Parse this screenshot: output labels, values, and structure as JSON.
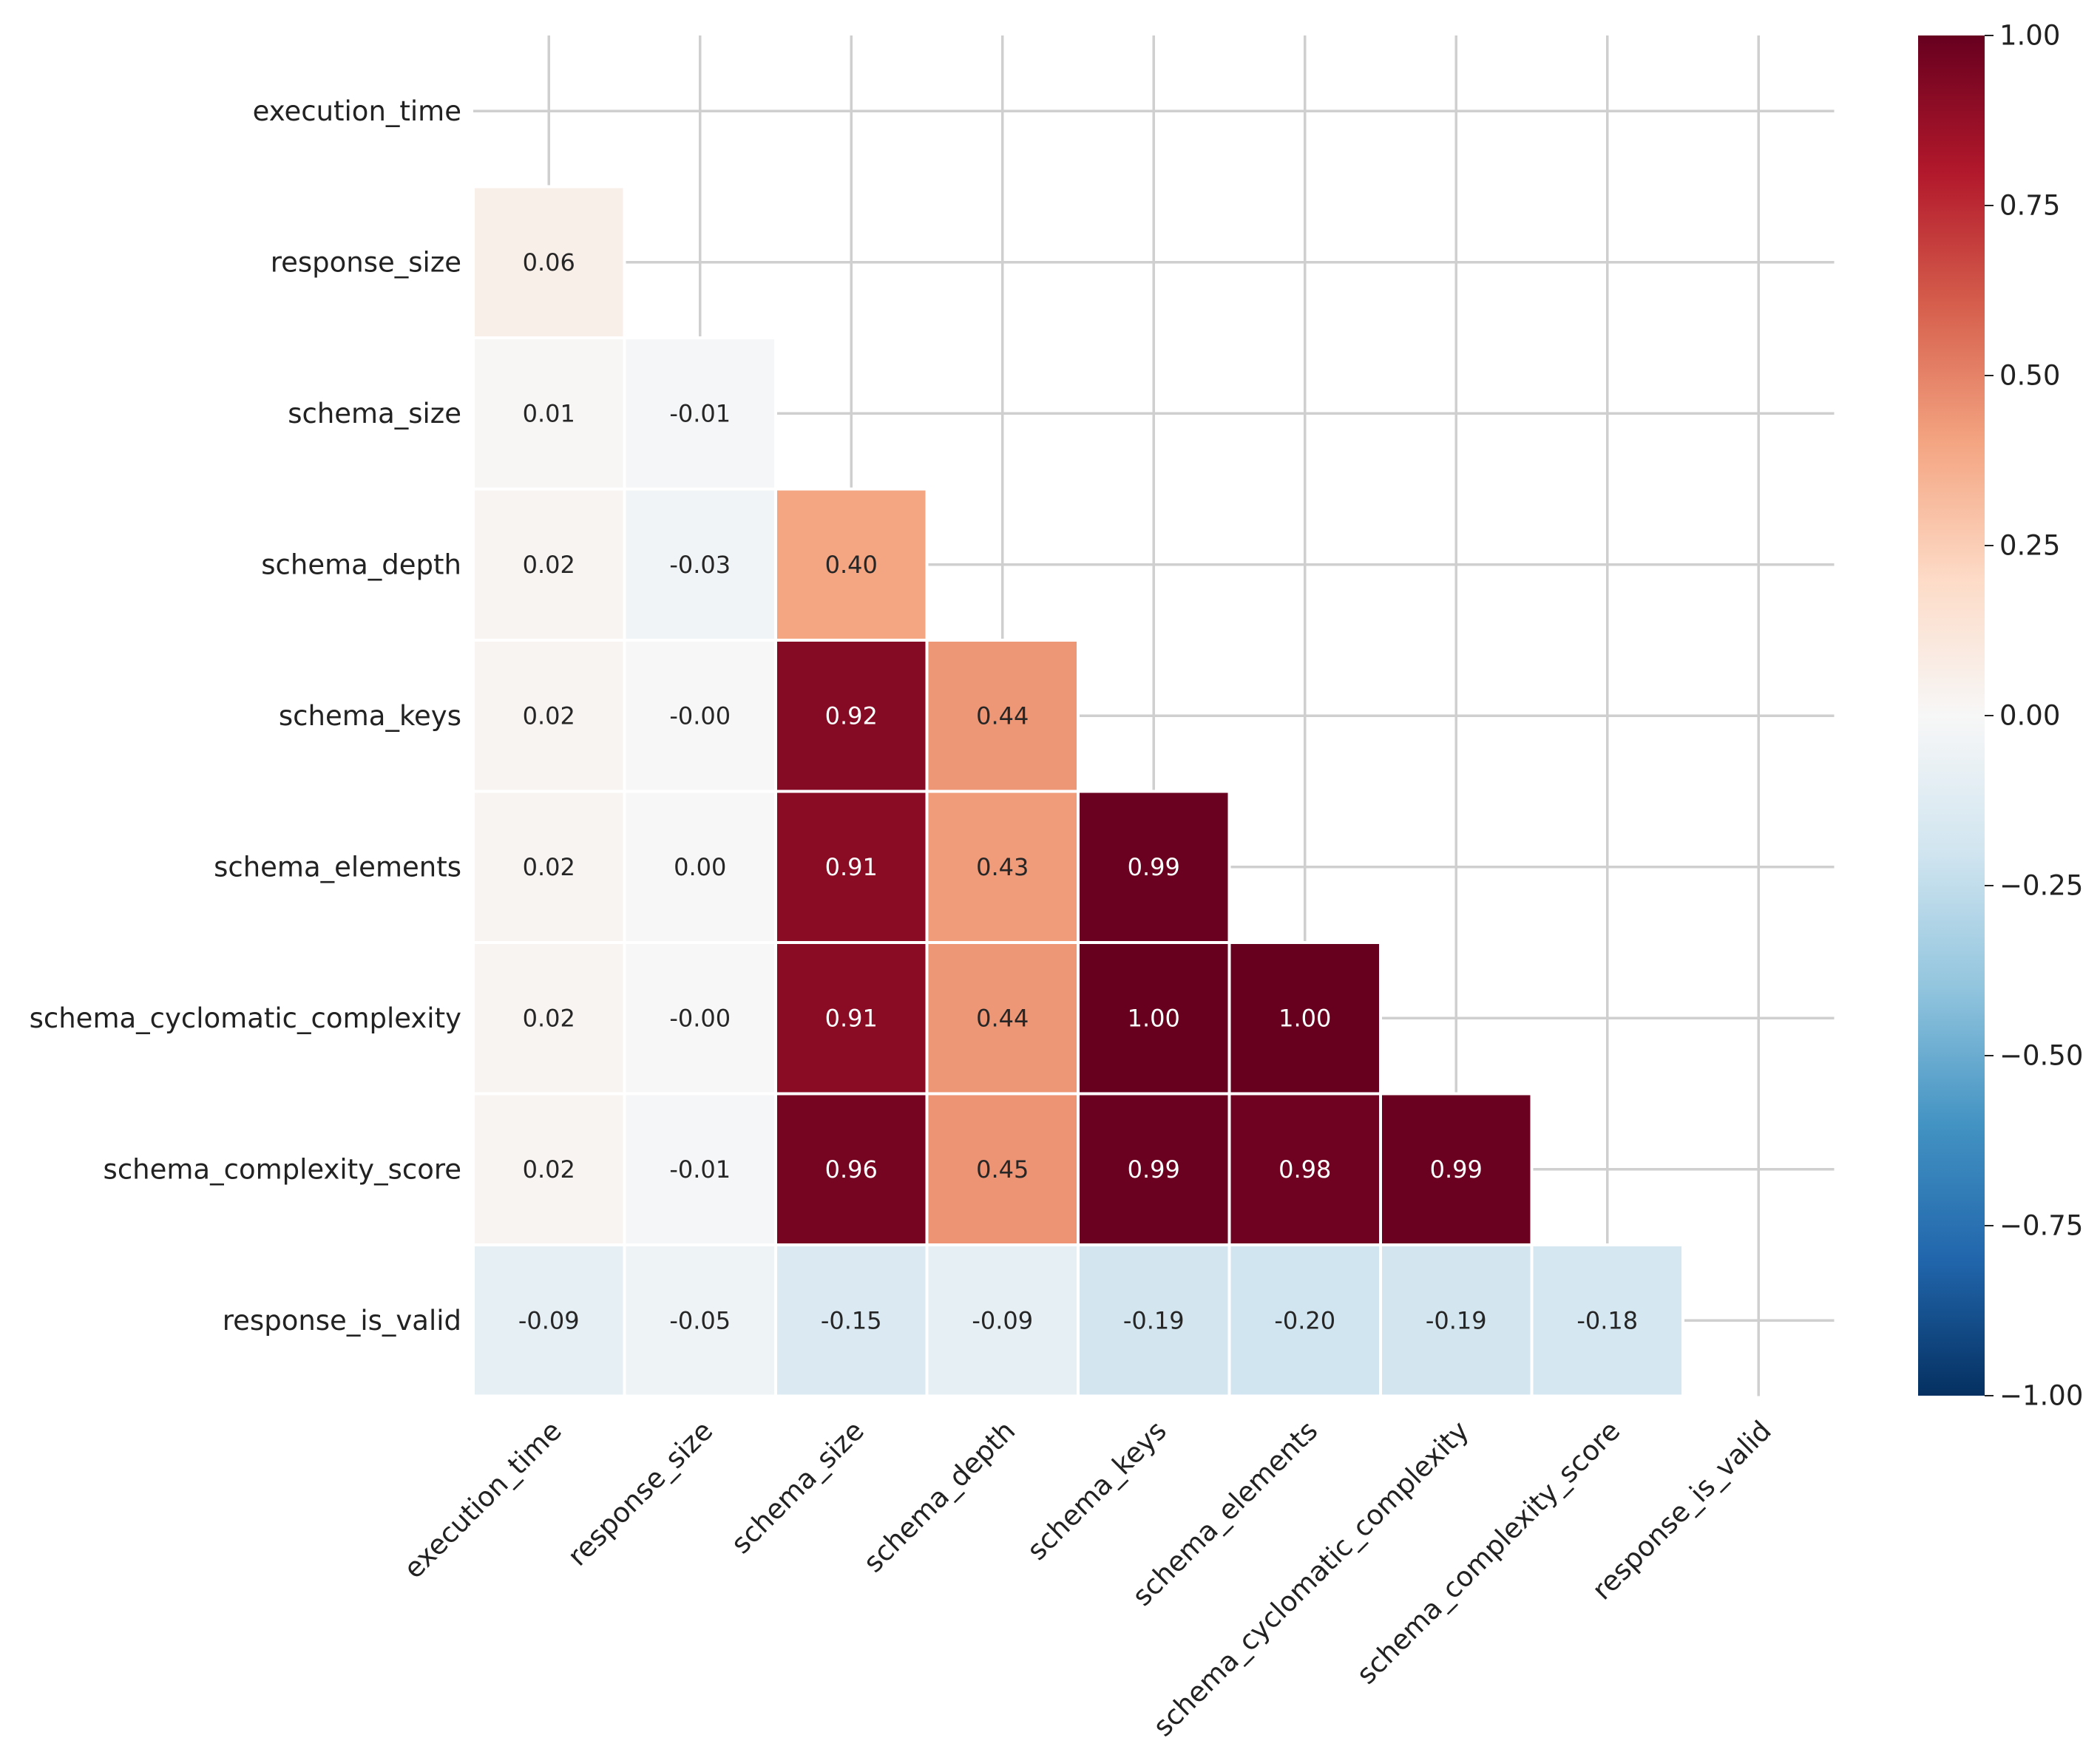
{
  "chart_data": {
    "type": "heatmap",
    "title": "",
    "xlabel": "",
    "ylabel": "",
    "variables": [
      "execution_time",
      "response_size",
      "schema_size",
      "schema_depth",
      "schema_keys",
      "schema_elements",
      "schema_cyclomatic_complexity",
      "schema_complexity_score",
      "response_is_valid"
    ],
    "mask": "upper-triangle-including-diagonal",
    "value_format": "2 decimals",
    "values": [
      [
        null,
        null,
        null,
        null,
        null,
        null,
        null,
        null,
        null
      ],
      [
        0.06,
        null,
        null,
        null,
        null,
        null,
        null,
        null,
        null
      ],
      [
        0.01,
        -0.01,
        null,
        null,
        null,
        null,
        null,
        null,
        null
      ],
      [
        0.02,
        -0.03,
        0.4,
        null,
        null,
        null,
        null,
        null,
        null
      ],
      [
        0.02,
        -0.0,
        0.92,
        0.44,
        null,
        null,
        null,
        null,
        null
      ],
      [
        0.02,
        0.0,
        0.91,
        0.43,
        0.99,
        null,
        null,
        null,
        null
      ],
      [
        0.02,
        -0.0,
        0.91,
        0.44,
        1.0,
        1.0,
        null,
        null,
        null
      ],
      [
        0.02,
        -0.01,
        0.96,
        0.45,
        0.99,
        0.98,
        0.99,
        null,
        null
      ],
      [
        -0.09,
        -0.05,
        -0.15,
        -0.09,
        -0.19,
        -0.2,
        -0.19,
        -0.18,
        null
      ]
    ],
    "cell_labels": [
      [
        null,
        null,
        null,
        null,
        null,
        null,
        null,
        null,
        null
      ],
      [
        "0.06",
        null,
        null,
        null,
        null,
        null,
        null,
        null,
        null
      ],
      [
        "0.01",
        "-0.01",
        null,
        null,
        null,
        null,
        null,
        null,
        null
      ],
      [
        "0.02",
        "-0.03",
        "0.40",
        null,
        null,
        null,
        null,
        null,
        null
      ],
      [
        "0.02",
        "-0.00",
        "0.92",
        "0.44",
        null,
        null,
        null,
        null,
        null
      ],
      [
        "0.02",
        "0.00",
        "0.91",
        "0.43",
        "0.99",
        null,
        null,
        null,
        null
      ],
      [
        "0.02",
        "-0.00",
        "0.91",
        "0.44",
        "1.00",
        "1.00",
        null,
        null,
        null
      ],
      [
        "0.02",
        "-0.01",
        "0.96",
        "0.45",
        "0.99",
        "0.98",
        "0.99",
        null,
        null
      ],
      [
        "-0.09",
        "-0.05",
        "-0.15",
        "-0.09",
        "-0.19",
        "-0.20",
        "-0.19",
        "-0.18",
        null
      ]
    ],
    "colorbar": {
      "colormap": "RdBu_r",
      "vmin": -1.0,
      "vmax": 1.0,
      "ticks": [
        1.0,
        0.75,
        0.5,
        0.25,
        0.0,
        -0.25,
        -0.5,
        -0.75,
        -1.0
      ],
      "tick_labels": [
        "1.00",
        "0.75",
        "0.50",
        "0.25",
        "0.00",
        "−0.25",
        "−0.50",
        "−0.75",
        "−1.00"
      ]
    },
    "grid": true,
    "x_tick_rotation": "45 degrees, right-aligned",
    "colors": {
      "grid": "#cfcfcf",
      "cell_border": "#ffffff",
      "text_dark": "#262626",
      "text_light": "#ffffff"
    }
  }
}
